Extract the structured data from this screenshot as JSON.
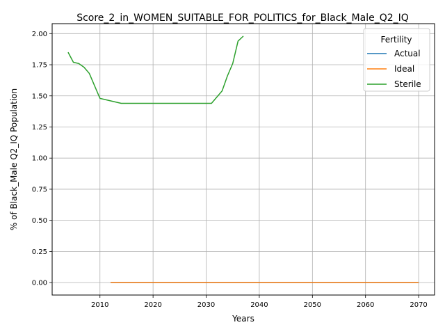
{
  "chart_data": {
    "type": "line",
    "title": "Score_2_in_WOMEN_SUITABLE_FOR_POLITICS_for_Black_Male_Q2_IQ",
    "xlabel": "Years",
    "ylabel": "% of Black_Male Q2_IQ Population",
    "xlim": [
      2001,
      2073
    ],
    "ylim": [
      -0.1,
      2.08
    ],
    "xticks": [
      2010,
      2020,
      2030,
      2040,
      2050,
      2060,
      2070
    ],
    "yticks": [
      0.0,
      0.25,
      0.5,
      0.75,
      1.0,
      1.25,
      1.5,
      1.75,
      2.0
    ],
    "ytick_labels": [
      "0.00",
      "0.25",
      "0.50",
      "0.75",
      "1.00",
      "1.25",
      "1.50",
      "1.75",
      "2.00"
    ],
    "grid": true,
    "legend": {
      "title": "Fertility",
      "placement": "top-right"
    },
    "series": [
      {
        "name": "Actual",
        "color": "#1f77b4",
        "x": [
          2012,
          2070
        ],
        "y": [
          0.0,
          0.0
        ]
      },
      {
        "name": "Ideal",
        "color": "#ff7f0e",
        "x": [
          2012,
          2070
        ],
        "y": [
          0.0,
          0.0
        ]
      },
      {
        "name": "Sterile",
        "color": "#2ca02c",
        "x": [
          2004,
          2005,
          2006,
          2007,
          2008,
          2010,
          2014,
          2020,
          2025,
          2031,
          2033,
          2034,
          2035,
          2036,
          2037
        ],
        "y": [
          1.85,
          1.77,
          1.76,
          1.73,
          1.68,
          1.48,
          1.44,
          1.44,
          1.44,
          1.44,
          1.54,
          1.66,
          1.76,
          1.94,
          1.98
        ]
      }
    ]
  }
}
